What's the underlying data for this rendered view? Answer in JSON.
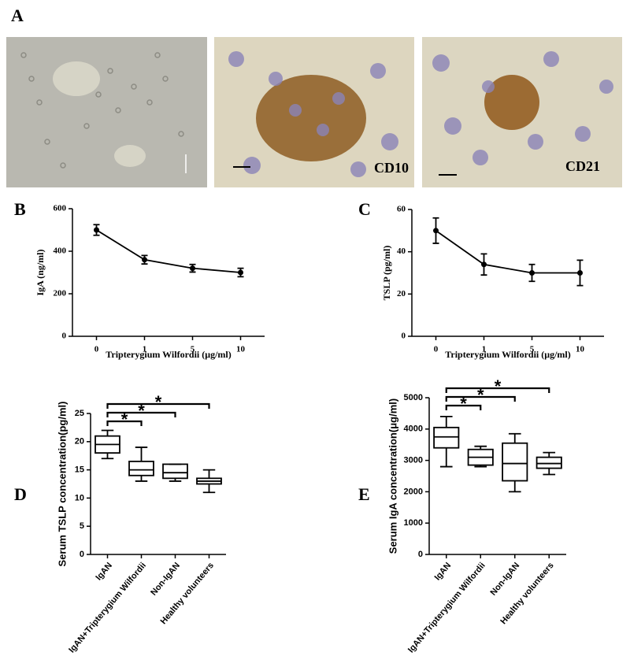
{
  "panel_a": {
    "label": "A",
    "captions": [
      "CD10",
      "CD21"
    ]
  },
  "chart_data": [
    {
      "type": "line",
      "panel_label": "B",
      "y_label": "IgA (ng/ml)",
      "x_label": "Tripterygium Wilfordii (μg/ml)",
      "categories": [
        "0",
        "1",
        "5",
        "10"
      ],
      "values": [
        500,
        360,
        320,
        300
      ],
      "errors": [
        25,
        20,
        18,
        20
      ],
      "ylim": [
        0,
        600
      ],
      "yticks": [
        0,
        200,
        400,
        600
      ],
      "color": "#000000"
    },
    {
      "type": "line",
      "panel_label": "C",
      "y_label": "TSLP (pg/ml)",
      "x_label": "Tripterygium Wilfordii (μg/ml)",
      "categories": [
        "0",
        "1",
        "5",
        "10"
      ],
      "values": [
        50,
        34,
        30,
        30
      ],
      "errors": [
        6,
        5,
        4,
        6
      ],
      "ylim": [
        0,
        60
      ],
      "yticks": [
        0,
        20,
        40,
        60
      ],
      "color": "#000000"
    },
    {
      "type": "box",
      "panel_label": "D",
      "y_label": "Serum TSLP concentration(pg/ml)",
      "categories": [
        "IgAN",
        "IgAN+Tripterygium Wilfordii",
        "Non-IgAN",
        "Healthy volunteers"
      ],
      "boxes": [
        {
          "min": 17,
          "q1": 18,
          "median": 19.5,
          "q3": 21,
          "max": 22
        },
        {
          "min": 13,
          "q1": 14,
          "median": 15,
          "q3": 16.5,
          "max": 19
        },
        {
          "min": 13,
          "q1": 13.5,
          "median": 14.5,
          "q3": 16,
          "max": 16
        },
        {
          "min": 11,
          "q1": 12.5,
          "median": 13,
          "q3": 13.5,
          "max": 15
        }
      ],
      "ylim": [
        0,
        25
      ],
      "yticks": [
        0,
        5,
        10,
        15,
        20,
        25
      ],
      "annotations": [
        "*",
        "*",
        "*"
      ],
      "color": "#000000"
    },
    {
      "type": "box",
      "panel_label": "E",
      "y_label": "Serum IgA concentration(μg/ml)",
      "categories": [
        "IgAN",
        "IgAN+Tripterygium Wilfordii",
        "Non-IgAN",
        "Healthy volunteers"
      ],
      "boxes": [
        {
          "min": 2800,
          "q1": 3400,
          "median": 3750,
          "q3": 4050,
          "max": 4400
        },
        {
          "min": 2800,
          "q1": 2850,
          "median": 3100,
          "q3": 3350,
          "max": 3450
        },
        {
          "min": 2000,
          "q1": 2350,
          "median": 2900,
          "q3": 3550,
          "max": 3850
        },
        {
          "min": 2550,
          "q1": 2750,
          "median": 2900,
          "q3": 3100,
          "max": 3250
        }
      ],
      "ylim": [
        0,
        5000
      ],
      "yticks": [
        0,
        1000,
        2000,
        3000,
        4000,
        5000
      ],
      "annotations": [
        "*",
        "*",
        "*"
      ],
      "color": "#000000"
    }
  ]
}
